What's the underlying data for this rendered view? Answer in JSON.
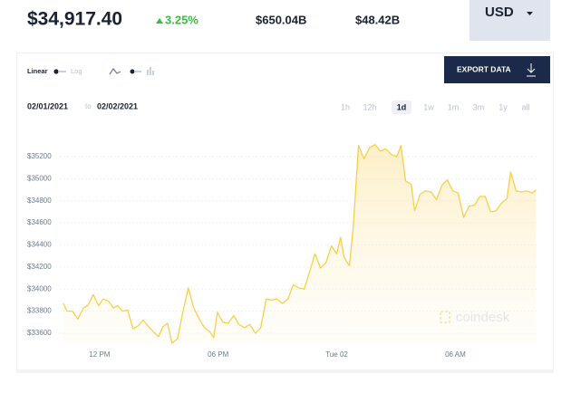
{
  "header": {
    "price": "$34,917.40",
    "change": "3.25%",
    "market_cap": "$650.04B",
    "volume": "$48.42B",
    "currency": "USD"
  },
  "toolbar": {
    "linear": "Linear",
    "log": "Log",
    "export": "EXPORT DATA"
  },
  "date_range": {
    "from": "02/01/2021",
    "separator": "to",
    "to": "02/02/2021"
  },
  "time_buttons": [
    "1h",
    "12h",
    "1d",
    "1w",
    "1m",
    "3m",
    "1y",
    "all"
  ],
  "selected_time": "1d",
  "watermark": "coindesk",
  "chart_data": {
    "type": "area",
    "color": "#f7cf4a",
    "x": [
      10.17,
      10.35,
      10.63,
      10.9,
      11.18,
      11.4,
      11.68,
      11.95,
      12.18,
      12.46,
      12.69,
      12.92,
      13.15,
      13.42,
      13.69,
      13.97,
      14.2,
      14.47,
      14.75,
      14.98,
      15.21,
      15.44,
      15.66,
      15.94,
      16.21,
      16.49,
      16.76,
      17.04,
      17.31,
      17.59,
      17.77,
      17.96,
      18.23,
      18.51,
      18.78,
      19.05,
      19.33,
      19.6,
      19.88,
      20.15,
      20.43,
      20.7,
      20.98,
      21.25,
      21.53,
      21.8,
      22.08,
      22.35,
      22.63,
      22.9,
      23.18,
      23.45,
      23.73,
      24.0,
      24.19,
      24.37,
      24.64,
      24.83,
      25.1,
      25.38,
      25.65,
      25.93,
      26.2,
      26.48,
      26.75,
      27.03,
      27.25,
      27.48,
      27.76,
      27.94,
      28.22,
      28.49,
      28.77,
      29.04,
      29.32,
      29.59,
      29.87,
      30.14,
      30.42,
      30.69,
      30.97,
      31.24,
      31.51,
      31.79,
      32.06,
      32.34,
      32.61,
      32.8,
      33.07,
      33.35,
      33.62,
      33.9,
      34.08
    ],
    "values": [
      33870,
      33800,
      33800,
      33730,
      33830,
      33850,
      33950,
      33850,
      33910,
      33890,
      33830,
      33850,
      33800,
      33810,
      33640,
      33670,
      33720,
      33660,
      33610,
      33570,
      33660,
      33690,
      33510,
      33550,
      33790,
      34010,
      33830,
      33730,
      33650,
      33610,
      33560,
      33790,
      33700,
      33690,
      33760,
      33680,
      33650,
      33680,
      33600,
      33650,
      33910,
      33900,
      33910,
      33870,
      33910,
      34040,
      34010,
      34000,
      34160,
      34320,
      34190,
      34240,
      34390,
      34320,
      34470,
      34290,
      34210,
      34560,
      35300,
      35180,
      35280,
      35310,
      35250,
      35270,
      35220,
      35200,
      35300,
      34980,
      34950,
      34710,
      34860,
      34890,
      34880,
      34810,
      34940,
      34990,
      34890,
      34870,
      34650,
      34750,
      34760,
      34840,
      34840,
      34700,
      34710,
      34780,
      34820,
      35060,
      34890,
      34880,
      34890,
      34870,
      34900
    ],
    "xlim": [
      10,
      34.2
    ],
    "xticks": [
      {
        "value": 12,
        "label": "12 PM"
      },
      {
        "value": 18,
        "label": "06 PM"
      },
      {
        "value": 24,
        "label": "Tue 02"
      },
      {
        "value": 30,
        "label": "06 AM"
      }
    ],
    "ylim": [
      33500,
      35400
    ],
    "yticks": [
      {
        "value": 33600,
        "label": "$33600"
      },
      {
        "value": 33800,
        "label": "$33800"
      },
      {
        "value": 34000,
        "label": "$34000"
      },
      {
        "value": 34200,
        "label": "$34200"
      },
      {
        "value": 34400,
        "label": "$34400"
      },
      {
        "value": 34600,
        "label": "$34600"
      },
      {
        "value": 34800,
        "label": "$34800"
      },
      {
        "value": 35000,
        "label": "$35000"
      },
      {
        "value": 35200,
        "label": "$35200"
      }
    ],
    "grid": true
  }
}
